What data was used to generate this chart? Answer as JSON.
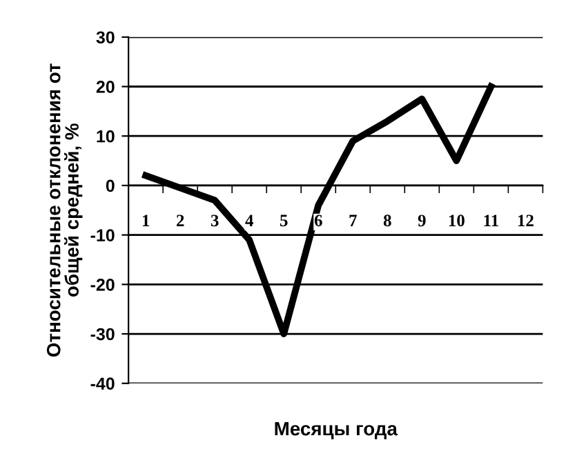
{
  "chart_data": {
    "type": "line",
    "xlabel": "Месяцы года",
    "ylabel": "Относительные отклонения от\nобщей средней, %",
    "categories": [
      "1",
      "2",
      "3",
      "4",
      "5",
      "6",
      "7",
      "8",
      "9",
      "10",
      "11",
      "12"
    ],
    "series": [
      {
        "color": "#000000",
        "values": [
          2,
          -0.5,
          -3,
          -11,
          -30,
          -4,
          9,
          13,
          17.5,
          5,
          20,
          null
        ]
      }
    ],
    "ylim": [
      -40,
      30
    ],
    "yticks": [
      -40,
      -30,
      -20,
      -10,
      0,
      10,
      20,
      30
    ],
    "grid": "y",
    "marker": "none",
    "line_style": "solid",
    "legend": false
  }
}
